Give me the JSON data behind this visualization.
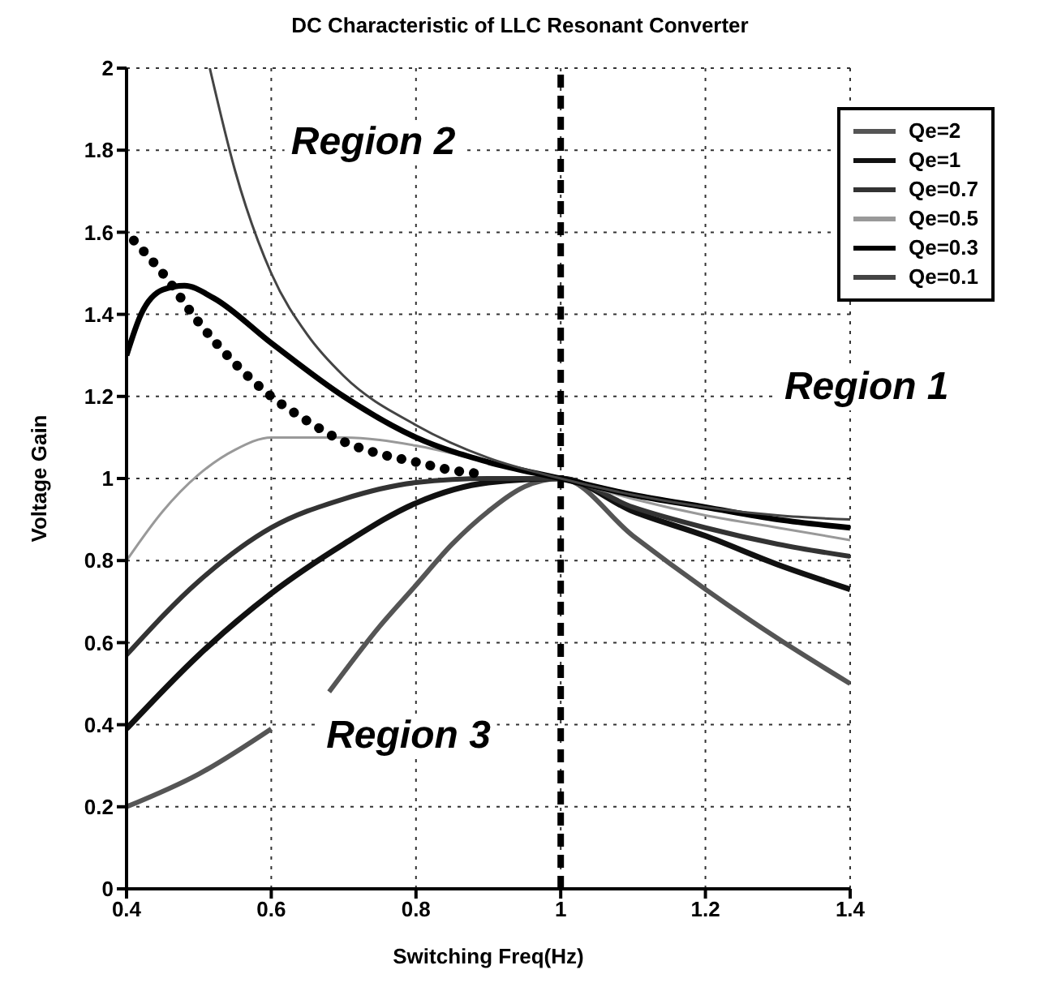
{
  "chart_data": {
    "type": "line",
    "title": "DC Characteristic of LLC Resonant Converter",
    "xlabel": "Switching Freq(Hz)",
    "ylabel": "Voltage Gain",
    "xlim": [
      0.4,
      1.4
    ],
    "xticks": [
      0.4,
      0.6,
      0.8,
      1,
      1.2,
      1.4
    ],
    "ylim": [
      0,
      2
    ],
    "yticks": [
      0,
      0.2,
      0.4,
      0.6,
      0.8,
      1,
      1.2,
      1.4,
      1.6,
      1.8,
      2
    ],
    "grid": true,
    "legend": "top right",
    "line_style": "solid",
    "marker": "none",
    "series": [
      {
        "name": "Qe=2",
        "color": "#555555",
        "x": [
          0.4,
          0.5,
          0.6,
          0.64,
          0.68,
          0.75,
          0.8,
          0.85,
          0.9,
          0.95,
          1,
          1.1,
          1.2,
          1.3,
          1.4
        ],
        "values": [
          0.2,
          0.28,
          0.39,
          null,
          0.48,
          0.64,
          0.74,
          0.84,
          0.92,
          0.98,
          1,
          0.86,
          0.73,
          0.61,
          0.5
        ]
      },
      {
        "name": "Qe=1",
        "color": "#111111",
        "x": [
          0.4,
          0.5,
          0.6,
          0.7,
          0.8,
          0.9,
          1,
          1.1,
          1.2,
          1.3,
          1.4
        ],
        "values": [
          0.39,
          0.57,
          0.72,
          0.84,
          0.94,
          0.99,
          1,
          0.92,
          0.86,
          0.79,
          0.73
        ]
      },
      {
        "name": "Qe=0.7",
        "color": "#333333",
        "x": [
          0.4,
          0.5,
          0.6,
          0.7,
          0.8,
          0.9,
          1,
          1.1,
          1.2,
          1.3,
          1.4
        ],
        "values": [
          0.57,
          0.75,
          0.88,
          0.95,
          0.99,
          1,
          1,
          0.93,
          0.88,
          0.84,
          0.81
        ]
      },
      {
        "name": "Qe=0.5",
        "color": "#999999",
        "x": [
          0.4,
          0.45,
          0.5,
          0.55,
          0.6,
          0.65,
          0.7,
          0.8,
          0.9,
          1,
          1.1,
          1.2,
          1.3,
          1.4
        ],
        "values": [
          0.8,
          0.92,
          1.01,
          1.07,
          1.1,
          1.1,
          1.1,
          1.08,
          1.04,
          1,
          0.95,
          0.91,
          0.88,
          0.85
        ]
      },
      {
        "name": "Qe=0.3",
        "color": "#000000",
        "x": [
          0.4,
          0.42,
          0.45,
          0.48,
          0.52,
          0.6,
          0.7,
          0.8,
          0.9,
          1,
          1.1,
          1.2,
          1.3,
          1.4
        ],
        "values": [
          1.3,
          1.4,
          1.46,
          1.47,
          1.44,
          1.33,
          1.2,
          1.1,
          1.04,
          1,
          0.96,
          0.93,
          0.9,
          0.88
        ]
      },
      {
        "name": "Qe=0.1",
        "color": "#444444",
        "x": [
          0.515,
          0.55,
          0.6,
          0.65,
          0.7,
          0.8,
          0.9,
          1,
          1.1,
          1.2,
          1.3,
          1.4
        ],
        "values": [
          2,
          1.75,
          1.5,
          1.35,
          1.25,
          1.13,
          1.05,
          1,
          0.96,
          0.93,
          0.91,
          0.9
        ]
      },
      {
        "color": "#000000",
        "line_style": "dotted",
        "x": [
          0.41,
          0.45,
          0.5,
          0.55,
          0.6,
          0.65,
          0.7,
          0.75,
          0.8,
          0.85,
          0.9
        ],
        "values": [
          1.58,
          1.5,
          1.38,
          1.28,
          1.2,
          1.14,
          1.09,
          1.06,
          1.04,
          1.02,
          1.01
        ]
      }
    ],
    "ref_lines": [
      {
        "axis": "x",
        "value": 1,
        "color": "#000000",
        "line_style": "dashed"
      }
    ],
    "annotations": [
      "Region 2",
      "Region 1",
      "Region 3"
    ]
  }
}
